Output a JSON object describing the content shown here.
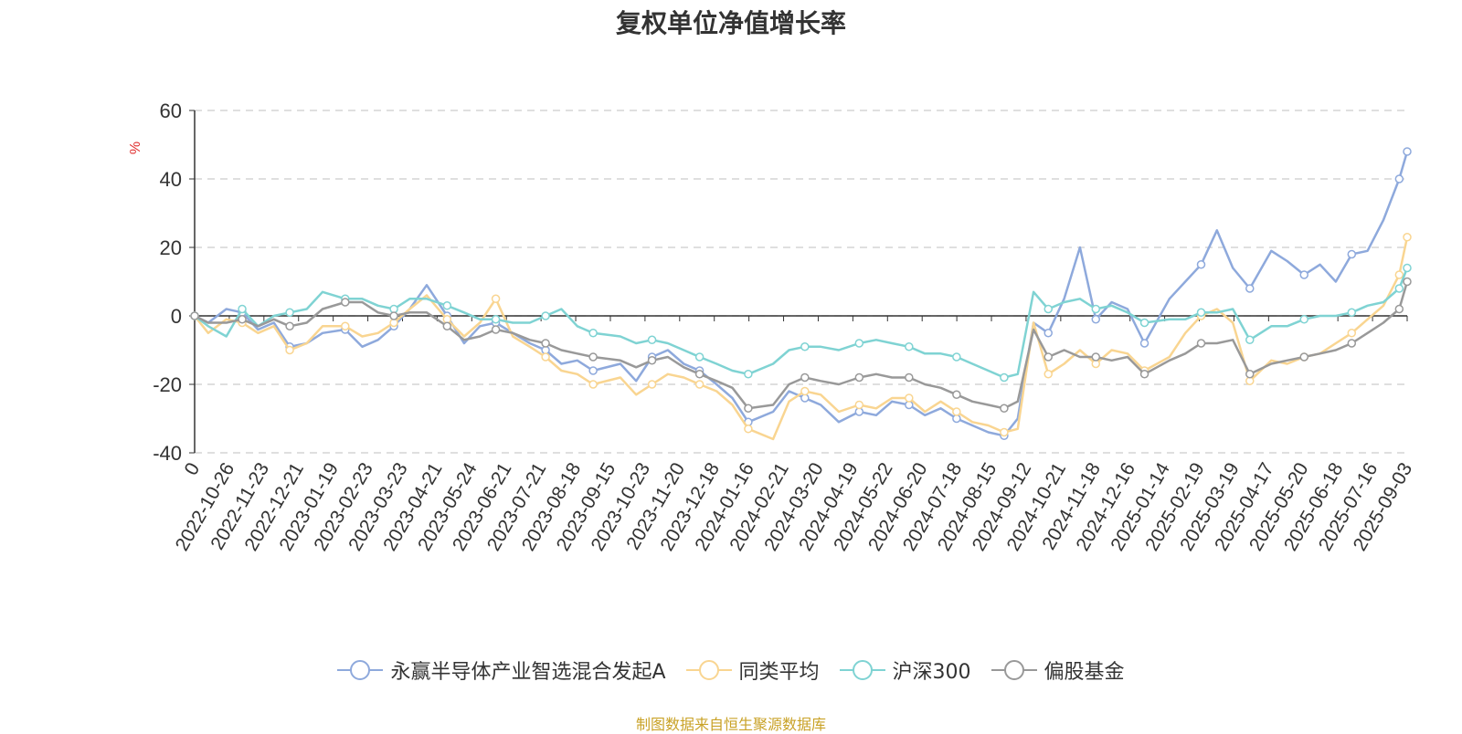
{
  "title": "复权单位净值增长率",
  "ylabel": "%",
  "source_note": "制图数据来自恒生聚源数据库",
  "colors": {
    "fund": "#8ea9dc",
    "peer_avg": "#f9d591",
    "hs300": "#7fd3d3",
    "equity_fund": "#999999",
    "ylabel": "#e03030",
    "source": "#c9a227"
  },
  "chart_data": {
    "type": "line",
    "title": "复权单位净值增长率",
    "ylabel": "%",
    "ylim": [
      -40,
      60
    ],
    "yticks": [
      -40,
      -20,
      0,
      20,
      40,
      60
    ],
    "grid": true,
    "legend_position": "bottom",
    "xtick_labels": [
      "0",
      "2022-10-26",
      "2022-11-23",
      "2022-12-21",
      "2023-01-19",
      "2023-02-23",
      "2023-03-23",
      "2023-04-21",
      "2023-05-24",
      "2023-06-21",
      "2023-07-21",
      "2023-08-18",
      "2023-09-15",
      "2023-10-23",
      "2023-11-20",
      "2023-12-18",
      "2024-01-16",
      "2024-02-21",
      "2024-03-20",
      "2024-04-19",
      "2024-05-22",
      "2024-06-20",
      "2024-07-18",
      "2024-08-15",
      "2024-09-12",
      "2024-10-21",
      "2024-11-18",
      "2024-12-16",
      "2025-01-14",
      "2025-02-19",
      "2025-03-19",
      "2025-04-17",
      "2025-05-20",
      "2025-06-18",
      "2025-07-16",
      "2025-09-03"
    ],
    "x": [
      "2022-09-28",
      "2022-10-10",
      "2022-10-26",
      "2022-11-09",
      "2022-11-23",
      "2022-12-07",
      "2022-12-21",
      "2023-01-05",
      "2023-01-19",
      "2023-02-08",
      "2023-02-23",
      "2023-03-09",
      "2023-03-23",
      "2023-04-06",
      "2023-04-21",
      "2023-05-09",
      "2023-05-24",
      "2023-06-07",
      "2023-06-21",
      "2023-07-06",
      "2023-07-21",
      "2023-08-04",
      "2023-08-18",
      "2023-09-01",
      "2023-09-15",
      "2023-10-09",
      "2023-10-23",
      "2023-11-06",
      "2023-11-20",
      "2023-12-04",
      "2023-12-18",
      "2024-01-02",
      "2024-01-16",
      "2024-01-30",
      "2024-02-21",
      "2024-03-06",
      "2024-03-20",
      "2024-04-03",
      "2024-04-19",
      "2024-05-07",
      "2024-05-22",
      "2024-06-05",
      "2024-06-20",
      "2024-07-04",
      "2024-07-18",
      "2024-08-01",
      "2024-08-15",
      "2024-08-29",
      "2024-09-12",
      "2024-09-24",
      "2024-10-08",
      "2024-10-21",
      "2024-11-04",
      "2024-11-18",
      "2024-12-02",
      "2024-12-16",
      "2024-12-30",
      "2025-01-14",
      "2025-02-05",
      "2025-02-19",
      "2025-03-05",
      "2025-03-19",
      "2025-04-02",
      "2025-04-17",
      "2025-05-06",
      "2025-05-20",
      "2025-06-04",
      "2025-06-18",
      "2025-07-02",
      "2025-07-16",
      "2025-07-30",
      "2025-08-13",
      "2025-08-27",
      "2025-09-03"
    ],
    "series": [
      {
        "name": "永赢半导体产业智选混合发起A",
        "color": "#8ea9dc",
        "values": [
          0,
          -2,
          2,
          1,
          -4,
          -2,
          -9,
          -8,
          -5,
          -4,
          -9,
          -7,
          -3,
          2,
          9,
          0,
          -8,
          -3,
          -2,
          -5,
          -8,
          -10,
          -14,
          -13,
          -16,
          -14,
          -19,
          -12,
          -10,
          -14,
          -16,
          -20,
          -24,
          -31,
          -28,
          -22,
          -24,
          -26,
          -31,
          -28,
          -29,
          -25,
          -26,
          -29,
          -27,
          -30,
          -32,
          -34,
          -35,
          -30,
          -2,
          -5,
          5,
          20,
          -1,
          4,
          2,
          -8,
          5,
          10,
          15,
          25,
          14,
          8,
          19,
          16,
          12,
          15,
          10,
          18,
          19,
          28,
          40,
          48
        ]
      },
      {
        "name": "同类平均",
        "color": "#f9d591",
        "values": [
          0,
          -5,
          -1,
          -2,
          -5,
          -3,
          -10,
          -8,
          -3,
          -3,
          -6,
          -5,
          -2,
          2,
          6,
          -1,
          -6,
          -2,
          5,
          -6,
          -9,
          -12,
          -16,
          -17,
          -20,
          -18,
          -23,
          -20,
          -17,
          -18,
          -20,
          -22,
          -26,
          -33,
          -36,
          -25,
          -22,
          -23,
          -28,
          -26,
          -27,
          -24,
          -24,
          -28,
          -25,
          -28,
          -31,
          -32,
          -34,
          -33,
          -2,
          -17,
          -14,
          -10,
          -14,
          -10,
          -11,
          -16,
          -12,
          -5,
          0,
          2,
          -2,
          -19,
          -13,
          -14,
          -12,
          -11,
          -8,
          -5,
          -1,
          3,
          12,
          23
        ]
      },
      {
        "name": "沪深300",
        "color": "#7fd3d3",
        "values": [
          0,
          -3,
          -6,
          2,
          -3,
          0,
          1,
          2,
          7,
          5,
          5,
          3,
          2,
          5,
          5,
          3,
          1,
          -1,
          -1,
          -2,
          -2,
          0,
          2,
          -3,
          -5,
          -6,
          -8,
          -7,
          -8,
          -10,
          -12,
          -14,
          -16,
          -17,
          -14,
          -10,
          -9,
          -9,
          -10,
          -8,
          -7,
          -8,
          -9,
          -11,
          -11,
          -12,
          -14,
          -16,
          -18,
          -17,
          7,
          2,
          4,
          5,
          2,
          3,
          1,
          -2,
          -1,
          -1,
          1,
          1,
          2,
          -7,
          -3,
          -3,
          -1,
          0,
          0,
          1,
          3,
          4,
          8,
          14
        ]
      },
      {
        "name": "偏股基金",
        "color": "#999999",
        "values": [
          0,
          -2,
          -2,
          -1,
          -3,
          -1,
          -3,
          -2,
          2,
          4,
          4,
          1,
          0,
          1,
          1,
          -3,
          -7,
          -6,
          -4,
          -5,
          -7,
          -8,
          -10,
          -11,
          -12,
          -13,
          -15,
          -13,
          -12,
          -15,
          -17,
          -19,
          -21,
          -27,
          -26,
          -20,
          -18,
          -19,
          -20,
          -18,
          -17,
          -18,
          -18,
          -20,
          -21,
          -23,
          -25,
          -26,
          -27,
          -25,
          -4,
          -12,
          -10,
          -12,
          -12,
          -13,
          -12,
          -17,
          -13,
          -11,
          -8,
          -8,
          -7,
          -17,
          -14,
          -13,
          -12,
          -11,
          -10,
          -8,
          -5,
          -2,
          2,
          10
        ]
      }
    ]
  },
  "legend": [
    "永赢半导体产业智选混合发起A",
    "同类平均",
    "沪深300",
    "偏股基金"
  ]
}
